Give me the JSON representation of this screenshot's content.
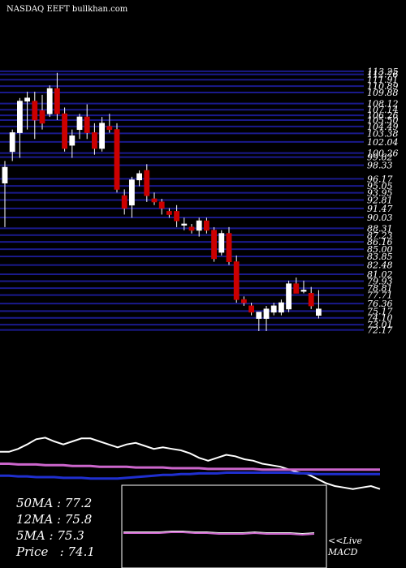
{
  "header": {
    "title": "NASDAQ EEFT bullkhan.com"
  },
  "moving_averages": [
    {
      "label": "50MA",
      "value": "77.2"
    },
    {
      "label": "12MA",
      "value": "75.8"
    },
    {
      "label": "5MA",
      "value": "75.3"
    },
    {
      "label": "Price",
      "value": "74.1"
    }
  ],
  "macd_caption": {
    "line1": "<<Live",
    "line2": "MACD"
  },
  "colors": {
    "background": "#000000",
    "grid": "#1a1a8c",
    "bull": "#ffffff",
    "bear": "#cc0000",
    "ma_pink": "#cc66cc",
    "ma_blue": "#1f2fcf",
    "indicator": "#ffffff"
  },
  "chart_data": [
    {
      "type": "candlestick",
      "title": "NASDAQ EEFT bullkhan.com",
      "ylim": [
        72,
        114
      ],
      "grid": true,
      "price_levels": [
        "113.25",
        "112.76",
        "111.91",
        "110.89",
        "109.88",
        "108.12",
        "107.14",
        "106.26",
        "105.50",
        "104.49",
        "103.38",
        "102.04",
        "100.26",
        "99.62",
        "98.33",
        "96.17",
        "95.05",
        "93.95",
        "92.81",
        "91.47",
        "90.03",
        "88.31",
        "87.23",
        "86.16",
        "85.00",
        "83.85",
        "82.48",
        "81.02",
        "79.93",
        "78.81",
        "77.71",
        "76.36",
        "75.17",
        "74.10",
        "73.01",
        "72.17"
      ],
      "candles": [
        {
          "o": 95.5,
          "h": 99.0,
          "l": 88.5,
          "c": 98.0
        },
        {
          "o": 100.5,
          "h": 104.0,
          "l": 99.0,
          "c": 103.5
        },
        {
          "o": 103.5,
          "h": 109.0,
          "l": 99.5,
          "c": 108.5
        },
        {
          "o": 108.5,
          "h": 110.0,
          "l": 104.0,
          "c": 109.0
        },
        {
          "o": 108.5,
          "h": 110.0,
          "l": 102.5,
          "c": 105.5
        },
        {
          "o": 107.0,
          "h": 109.5,
          "l": 104.0,
          "c": 105.0
        },
        {
          "o": 106.5,
          "h": 111.0,
          "l": 106.0,
          "c": 110.5
        },
        {
          "o": 110.5,
          "h": 113.0,
          "l": 105.5,
          "c": 106.5
        },
        {
          "o": 106.5,
          "h": 107.5,
          "l": 100.5,
          "c": 101.0
        },
        {
          "o": 101.5,
          "h": 104.0,
          "l": 99.5,
          "c": 103.0
        },
        {
          "o": 104.0,
          "h": 106.5,
          "l": 102.5,
          "c": 106.0
        },
        {
          "o": 106.0,
          "h": 108.0,
          "l": 102.5,
          "c": 103.5
        },
        {
          "o": 103.5,
          "h": 105.0,
          "l": 100.0,
          "c": 101.0
        },
        {
          "o": 101.0,
          "h": 106.0,
          "l": 100.5,
          "c": 105.0
        },
        {
          "o": 104.5,
          "h": 106.5,
          "l": 103.5,
          "c": 104.0
        },
        {
          "o": 104.0,
          "h": 105.0,
          "l": 94.0,
          "c": 94.5
        },
        {
          "o": 93.5,
          "h": 94.5,
          "l": 90.5,
          "c": 91.5
        },
        {
          "o": 92.0,
          "h": 96.5,
          "l": 90.0,
          "c": 96.0
        },
        {
          "o": 96.0,
          "h": 97.5,
          "l": 95.0,
          "c": 97.0
        },
        {
          "o": 97.5,
          "h": 98.5,
          "l": 92.5,
          "c": 93.5
        },
        {
          "o": 93.0,
          "h": 94.0,
          "l": 92.0,
          "c": 92.5
        },
        {
          "o": 92.5,
          "h": 93.0,
          "l": 90.5,
          "c": 91.5
        },
        {
          "o": 91.0,
          "h": 91.5,
          "l": 90.0,
          "c": 90.5
        },
        {
          "o": 91.0,
          "h": 92.0,
          "l": 88.5,
          "c": 89.5
        },
        {
          "o": 89.0,
          "h": 90.0,
          "l": 88.0,
          "c": 89.0
        },
        {
          "o": 88.5,
          "h": 89.0,
          "l": 87.5,
          "c": 88.0
        },
        {
          "o": 88.0,
          "h": 90.0,
          "l": 87.0,
          "c": 89.5
        },
        {
          "o": 89.5,
          "h": 90.0,
          "l": 87.5,
          "c": 88.0
        },
        {
          "o": 88.0,
          "h": 88.5,
          "l": 83.0,
          "c": 83.5
        },
        {
          "o": 84.5,
          "h": 88.0,
          "l": 84.0,
          "c": 87.5
        },
        {
          "o": 87.5,
          "h": 88.5,
          "l": 82.5,
          "c": 83.0
        },
        {
          "o": 83.0,
          "h": 84.0,
          "l": 76.5,
          "c": 77.0
        },
        {
          "o": 77.0,
          "h": 77.5,
          "l": 76.0,
          "c": 76.5
        },
        {
          "o": 76.0,
          "h": 76.5,
          "l": 74.5,
          "c": 75.0
        },
        {
          "o": 74.0,
          "h": 75.0,
          "l": 72.0,
          "c": 75.0
        },
        {
          "o": 74.0,
          "h": 76.0,
          "l": 72.0,
          "c": 75.5
        },
        {
          "o": 75.0,
          "h": 76.5,
          "l": 74.5,
          "c": 76.0
        },
        {
          "o": 75.0,
          "h": 77.0,
          "l": 74.5,
          "c": 76.5
        },
        {
          "o": 75.5,
          "h": 80.0,
          "l": 75.0,
          "c": 79.5
        },
        {
          "o": 79.5,
          "h": 80.5,
          "l": 78.0,
          "c": 78.0
        },
        {
          "o": 78.5,
          "h": 80.0,
          "l": 78.0,
          "c": 78.5
        },
        {
          "o": 78.0,
          "h": 79.0,
          "l": 75.5,
          "c": 76.0
        },
        {
          "o": 74.5,
          "h": 78.5,
          "l": 74.0,
          "c": 75.5
        }
      ]
    },
    {
      "type": "line",
      "series": [
        {
          "values": [
            62,
            62,
            58,
            52,
            45,
            43,
            48,
            52,
            48,
            44,
            44,
            48,
            52,
            56,
            52,
            50,
            54,
            58,
            56,
            58,
            60,
            64,
            70,
            74,
            70,
            66,
            68,
            72,
            74,
            78,
            80,
            82,
            86,
            90,
            92,
            98,
            104,
            108,
            110,
            112,
            110,
            108,
            112
          ]
        },
        {
          "values": [
            78,
            78,
            79,
            79,
            79,
            80,
            80,
            80,
            81,
            81,
            81,
            82,
            82,
            82,
            82,
            83,
            83,
            83,
            83,
            84,
            84,
            84,
            84,
            85,
            85,
            85,
            85,
            85,
            85,
            86,
            86,
            86,
            86,
            86,
            86,
            86,
            86,
            86,
            86,
            86,
            86,
            86,
            86
          ]
        },
        {
          "values": [
            94,
            94,
            95,
            95,
            96,
            96,
            96,
            97,
            97,
            97,
            98,
            98,
            98,
            98,
            97,
            96,
            95,
            94,
            93,
            93,
            92,
            92,
            91,
            91,
            91,
            90,
            90,
            90,
            90,
            90,
            90,
            90,
            90,
            91,
            91,
            92,
            92,
            92,
            92,
            92,
            92,
            92,
            92
          ]
        }
      ]
    },
    {
      "type": "line",
      "series": [
        {
          "values": [
            59,
            59,
            59,
            59,
            58,
            58,
            59,
            59,
            60,
            60,
            60,
            59,
            60,
            60,
            60,
            61,
            60
          ]
        }
      ]
    }
  ]
}
